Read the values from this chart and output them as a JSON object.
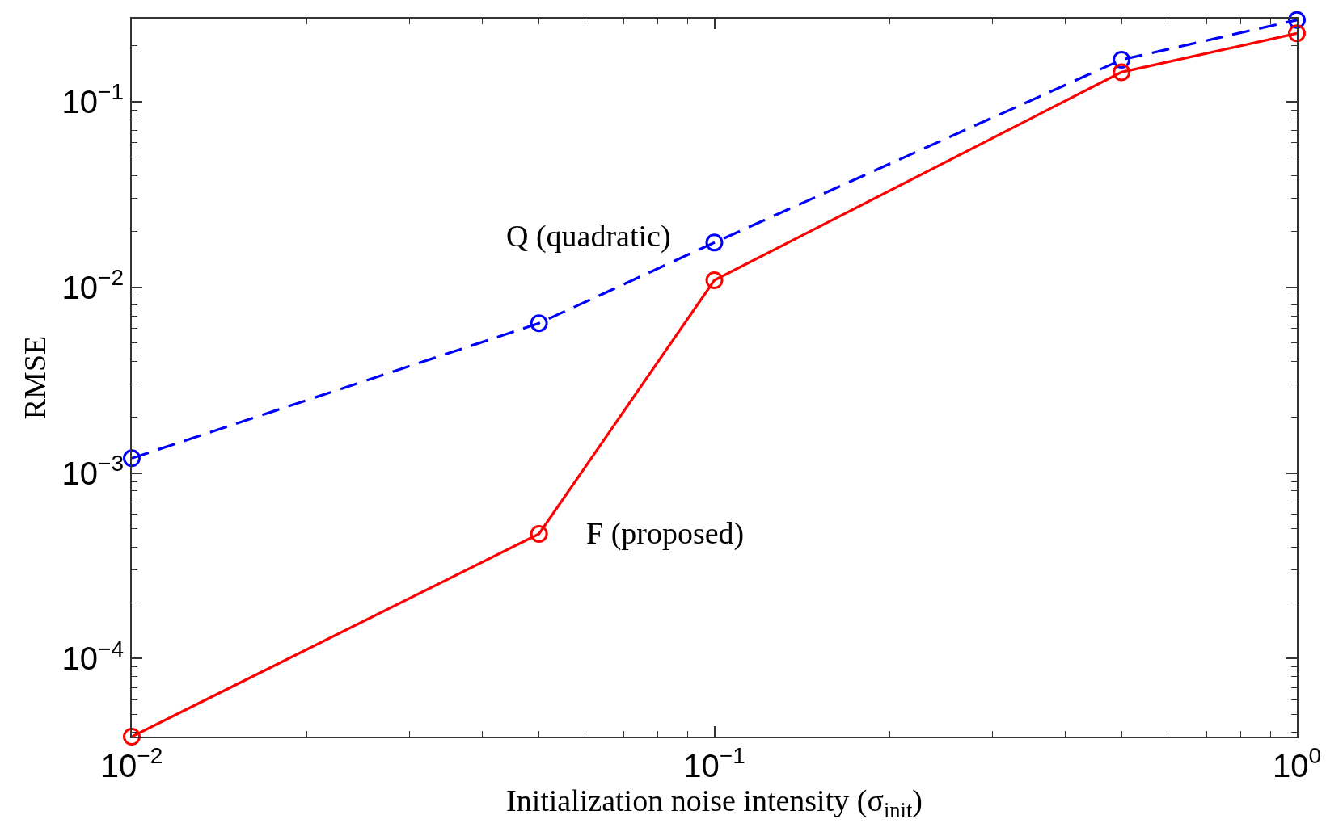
{
  "chart_data": {
    "type": "line",
    "xlabel": "Initialization noise intensity (σ$_{init}$)",
    "ylabel": "RMSE",
    "x": [
      0.01,
      0.05,
      0.1,
      0.5,
      1
    ],
    "series": [
      {
        "name": "Q (quadratic)",
        "color": "#0000ff",
        "line_style": "dashed",
        "values": [
          0.0012,
          0.0064,
          0.0174,
          0.168,
          0.275
        ]
      },
      {
        "name": "F (proposed)",
        "color": "#ff0000",
        "line_style": "solid",
        "values": [
          3.8e-05,
          0.00047,
          0.0109,
          0.144,
          0.233
        ]
      }
    ],
    "log": "xy",
    "xlim": [
      0.01,
      1
    ],
    "ylim": [
      3.8e-05,
      0.28
    ],
    "xticks": [
      {
        "value": 0.01,
        "label": "10$^{−2}$"
      },
      {
        "value": 0.02,
        "label": null
      },
      {
        "value": 0.03,
        "label": null
      },
      {
        "value": 0.04,
        "label": null
      },
      {
        "value": 0.05,
        "label": null
      },
      {
        "value": 0.06,
        "label": null
      },
      {
        "value": 0.07,
        "label": null
      },
      {
        "value": 0.08,
        "label": null
      },
      {
        "value": 0.09,
        "label": null
      },
      {
        "value": 0.1,
        "label": "10$^{−1}$"
      },
      {
        "value": 0.2,
        "label": null
      },
      {
        "value": 0.3,
        "label": null
      },
      {
        "value": 0.4,
        "label": null
      },
      {
        "value": 0.5,
        "label": null
      },
      {
        "value": 0.6,
        "label": null
      },
      {
        "value": 0.7,
        "label": null
      },
      {
        "value": 0.8,
        "label": null
      },
      {
        "value": 0.9,
        "label": null
      },
      {
        "value": 1,
        "label": "10$^{0}$"
      }
    ],
    "yticks": [
      {
        "value": 4e-05,
        "label": null
      },
      {
        "value": 5e-05,
        "label": null
      },
      {
        "value": 6e-05,
        "label": null
      },
      {
        "value": 7e-05,
        "label": null
      },
      {
        "value": 8e-05,
        "label": null
      },
      {
        "value": 9e-05,
        "label": null
      },
      {
        "value": 0.0001,
        "label": "10$^{−4}$"
      },
      {
        "value": 0.0002,
        "label": null
      },
      {
        "value": 0.0003,
        "label": null
      },
      {
        "value": 0.0004,
        "label": null
      },
      {
        "value": 0.0005,
        "label": null
      },
      {
        "value": 0.0006,
        "label": null
      },
      {
        "value": 0.0007,
        "label": null
      },
      {
        "value": 0.0008,
        "label": null
      },
      {
        "value": 0.0009,
        "label": null
      },
      {
        "value": 0.001,
        "label": "10$^{−3}$"
      },
      {
        "value": 0.002,
        "label": null
      },
      {
        "value": 0.003,
        "label": null
      },
      {
        "value": 0.004,
        "label": null
      },
      {
        "value": 0.005,
        "label": null
      },
      {
        "value": 0.006,
        "label": null
      },
      {
        "value": 0.007,
        "label": null
      },
      {
        "value": 0.008,
        "label": null
      },
      {
        "value": 0.009,
        "label": null
      },
      {
        "value": 0.01,
        "label": "10$^{−2}$"
      },
      {
        "value": 0.02,
        "label": null
      },
      {
        "value": 0.03,
        "label": null
      },
      {
        "value": 0.04,
        "label": null
      },
      {
        "value": 0.05,
        "label": null
      },
      {
        "value": 0.06,
        "label": null
      },
      {
        "value": 0.07,
        "label": null
      },
      {
        "value": 0.08,
        "label": null
      },
      {
        "value": 0.09,
        "label": null
      },
      {
        "value": 0.1,
        "label": "10$^{−1}$"
      },
      {
        "value": 0.2,
        "label": null
      }
    ],
    "grid": false,
    "legend": false,
    "marker": "circle"
  }
}
